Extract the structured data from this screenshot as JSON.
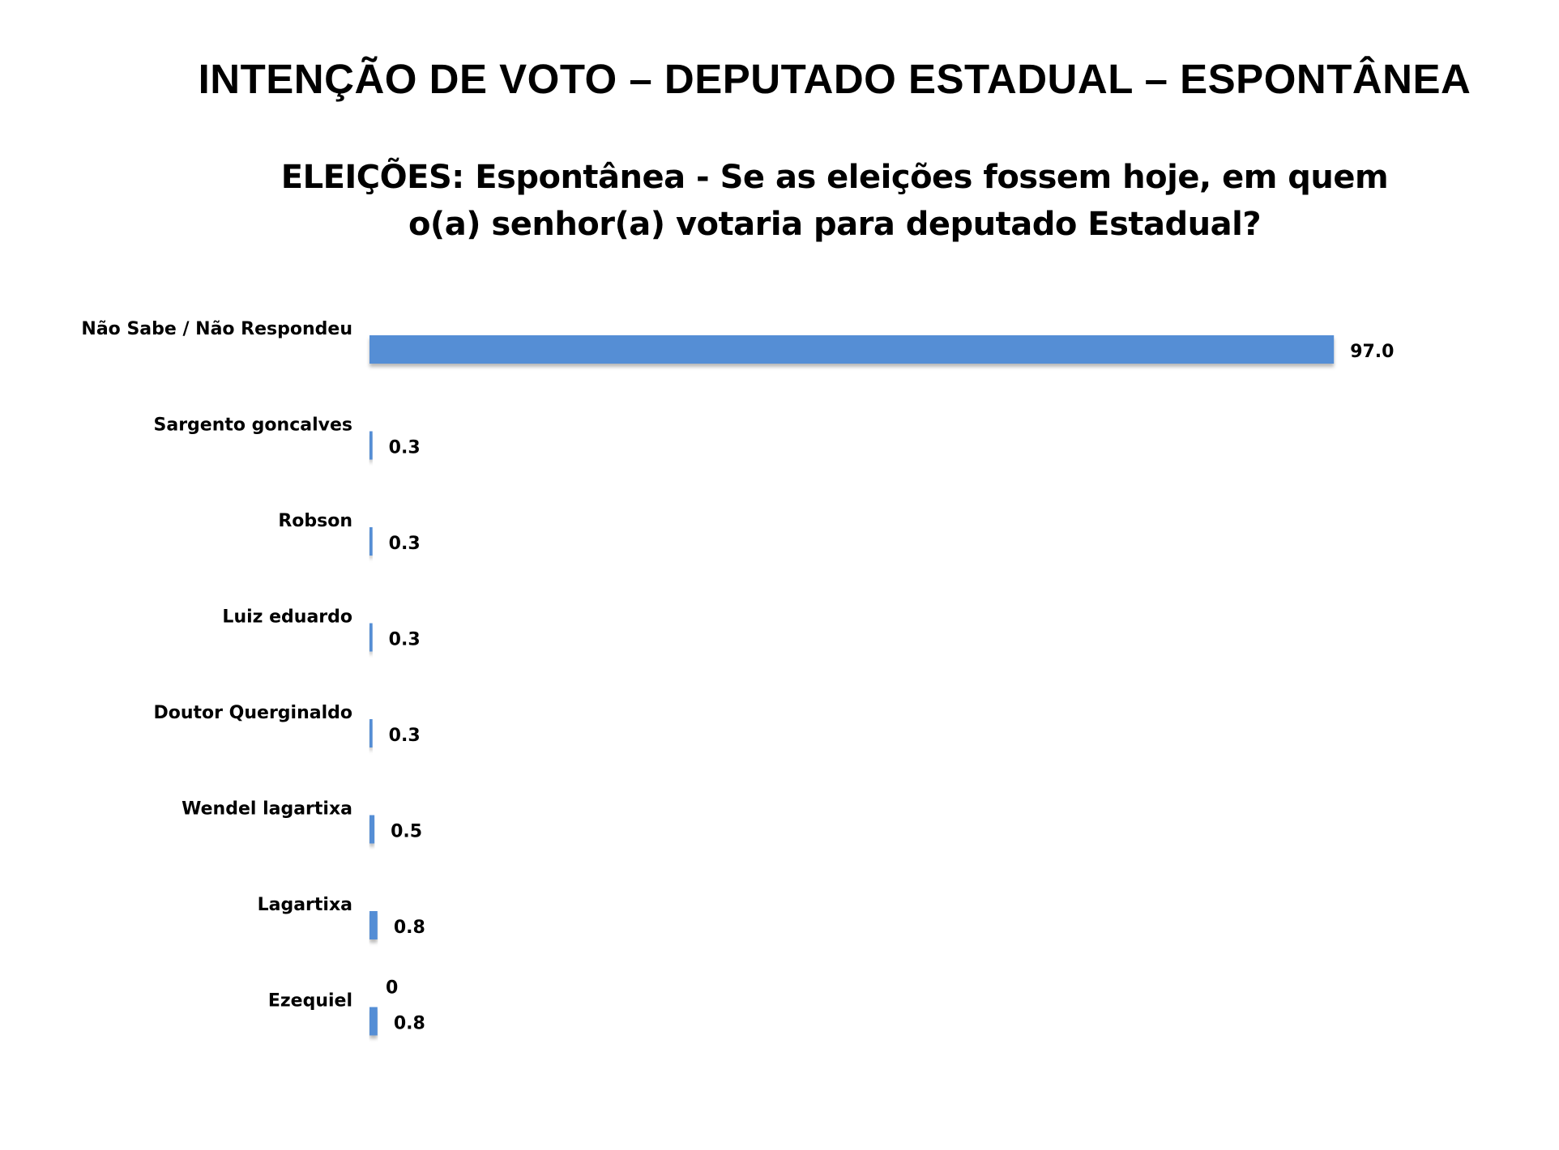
{
  "header": {
    "main_title": "INTENÇÃO DE VOTO – DEPUTADO ESTADUAL – ESPONTÂNEA"
  },
  "chart_data": {
    "type": "bar",
    "orientation": "horizontal",
    "title": "ELEIÇÕES: Espontânea - Se as eleições fossem hoje, em quem o(a) senhor(a) votaria para deputado Estadual?",
    "categories": [
      "Não Sabe / Não Respondeu",
      "Sargento goncalves",
      "Robson",
      "Luiz eduardo",
      "Doutor Querginaldo",
      "Wendel lagartixa",
      "Lagartixa",
      "Ezequiel"
    ],
    "values": [
      97.0,
      0.3,
      0.3,
      0.3,
      0.3,
      0.5,
      0.8,
      0.8
    ],
    "value_labels": [
      "97.0",
      "0.3",
      "0.3",
      "0.3",
      "0.3",
      "0.5",
      "0.8",
      "0.8"
    ],
    "extra_annotation": "0",
    "xlim": [
      0,
      100
    ],
    "grid": false,
    "legend": "none",
    "bar_color": "#558ED5"
  }
}
